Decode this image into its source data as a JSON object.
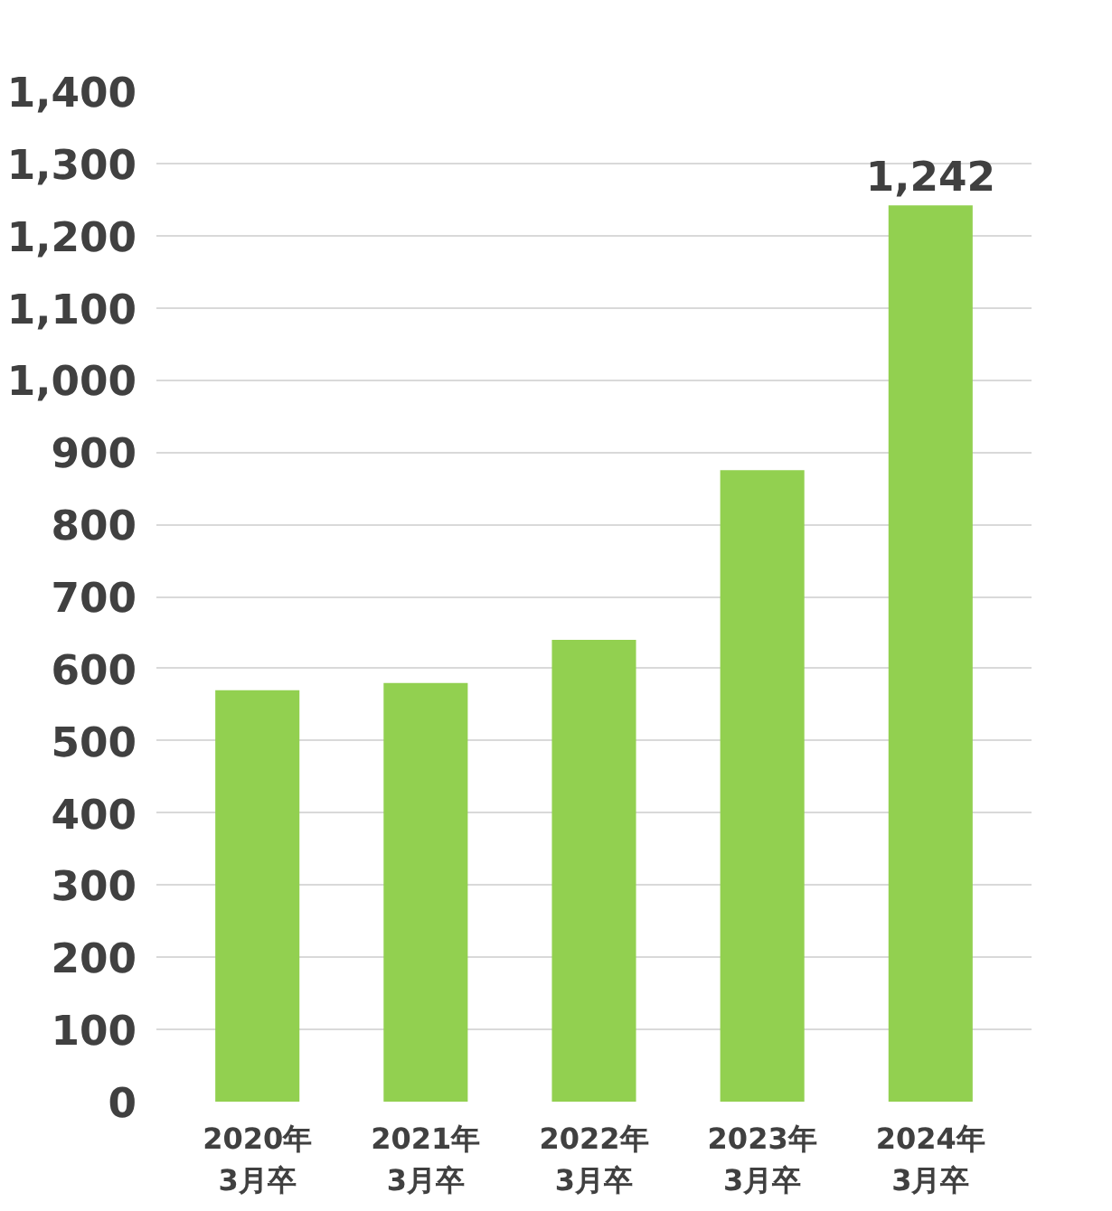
{
  "chart_data": {
    "type": "bar",
    "categories": [
      "2020年\n3月卒",
      "2021年\n3月卒",
      "2022年\n3月卒",
      "2023年\n3月卒",
      "2024年\n3月卒"
    ],
    "values": [
      570,
      580,
      640,
      875,
      1242
    ],
    "value_labels": [
      null,
      null,
      null,
      null,
      "1,242"
    ],
    "color": "#92d050",
    "ylim": [
      0,
      1400
    ],
    "yticks": [
      0,
      100,
      200,
      300,
      400,
      500,
      600,
      700,
      800,
      900,
      {
        "value": 1000,
        "label": "1,000"
      },
      {
        "value": 1100,
        "label": "1,100"
      },
      {
        "value": 1200,
        "label": "1,200"
      },
      {
        "value": 1300,
        "label": "1,300"
      },
      {
        "value": 1400,
        "label": "1,400"
      }
    ],
    "grid": "y"
  }
}
